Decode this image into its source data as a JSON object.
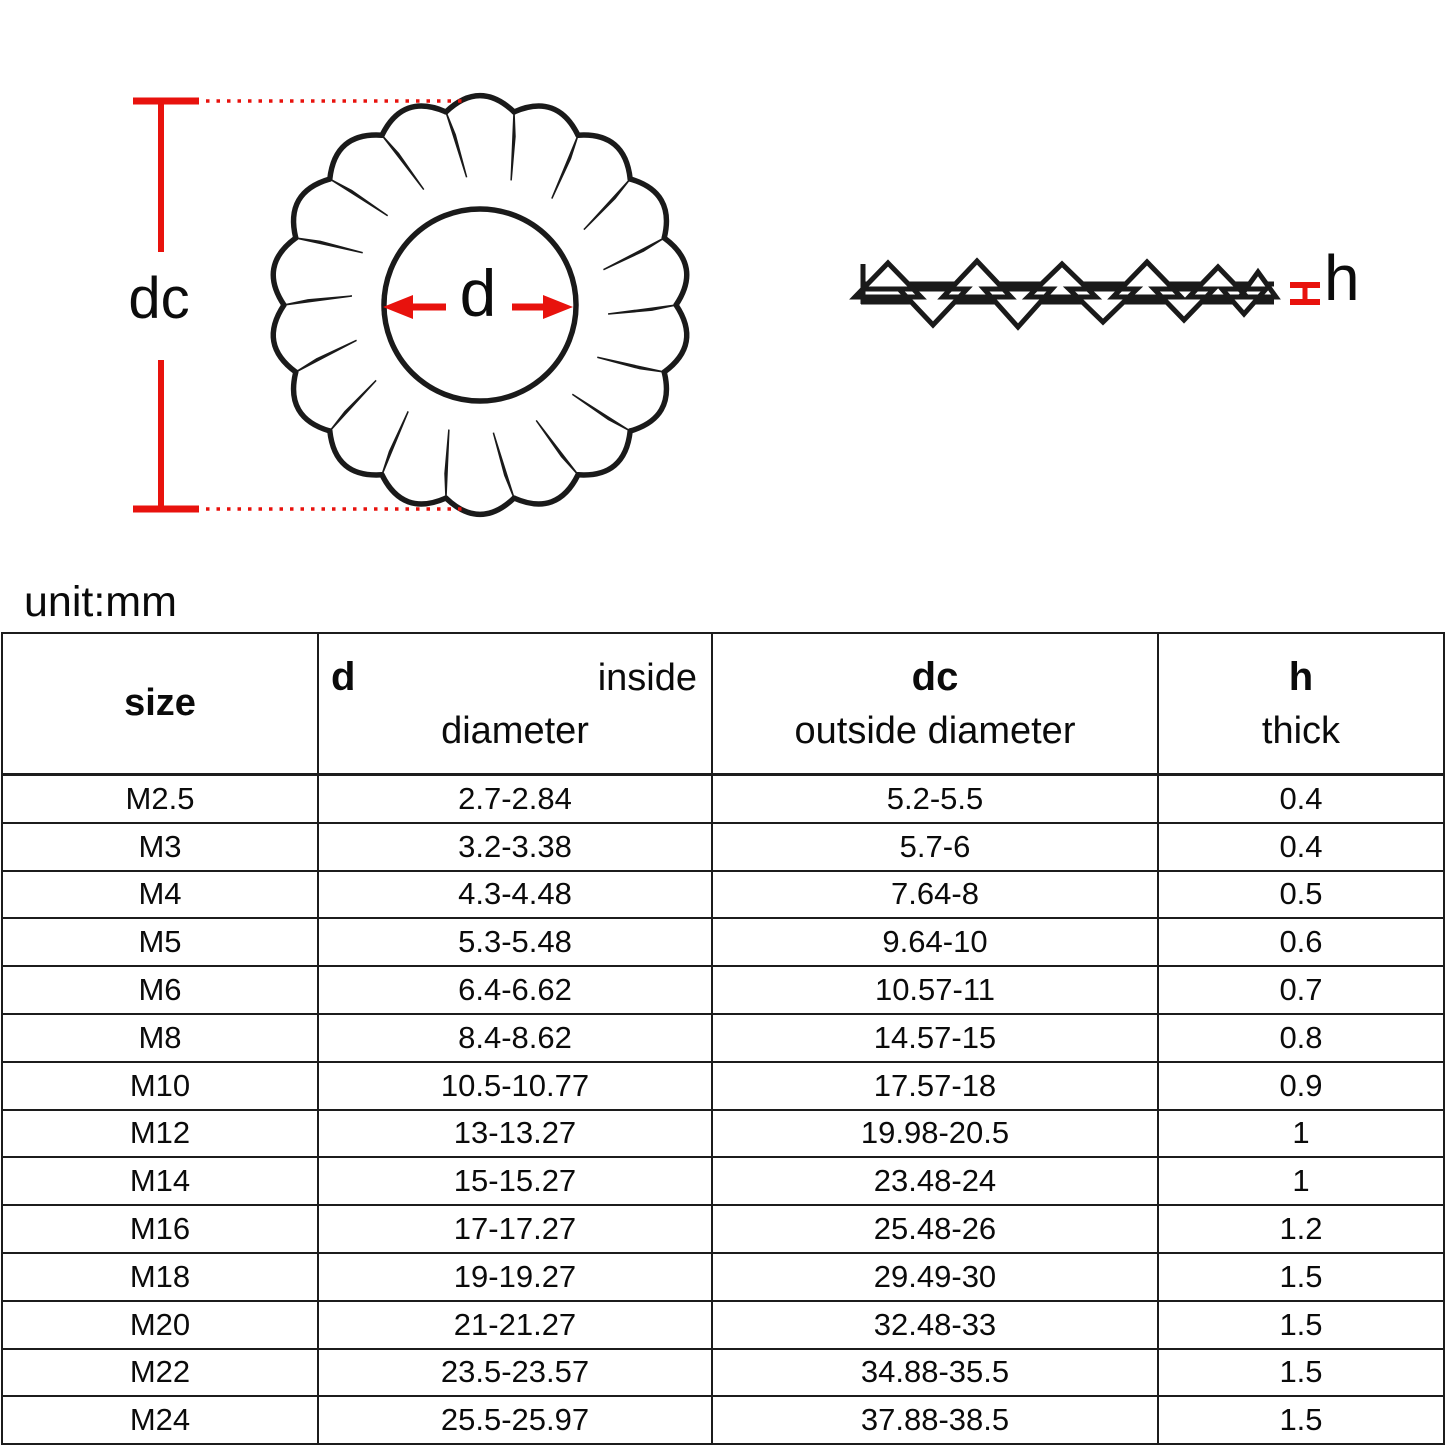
{
  "unit_note": "unit:mm",
  "diagram": {
    "front_view": {
      "outer_diameter_label": "dc",
      "inner_diameter_label": "d"
    },
    "side_view": {
      "thickness_label": "h"
    },
    "colors": {
      "dimension_red": "#e8120d",
      "line_black": "#1a1a1a"
    }
  },
  "table": {
    "header": {
      "size_label": "size",
      "d_symbol": "d",
      "d_desc_word1": "inside",
      "d_desc_word2": "diameter",
      "dc_symbol": "dc",
      "dc_desc": "outside diameter",
      "h_symbol": "h",
      "h_desc": "thick"
    },
    "rows": [
      {
        "size": "M2.5",
        "d": "2.7-2.84",
        "dc": "5.2-5.5",
        "h": "0.4"
      },
      {
        "size": "M3",
        "d": "3.2-3.38",
        "dc": "5.7-6",
        "h": "0.4"
      },
      {
        "size": "M4",
        "d": "4.3-4.48",
        "dc": "7.64-8",
        "h": "0.5"
      },
      {
        "size": "M5",
        "d": "5.3-5.48",
        "dc": "9.64-10",
        "h": "0.6"
      },
      {
        "size": "M6",
        "d": "6.4-6.62",
        "dc": "10.57-11",
        "h": "0.7"
      },
      {
        "size": "M8",
        "d": "8.4-8.62",
        "dc": "14.57-15",
        "h": "0.8"
      },
      {
        "size": "M10",
        "d": "10.5-10.77",
        "dc": "17.57-18",
        "h": "0.9"
      },
      {
        "size": "M12",
        "d": "13-13.27",
        "dc": "19.98-20.5",
        "h": "1"
      },
      {
        "size": "M14",
        "d": "15-15.27",
        "dc": "23.48-24",
        "h": "1"
      },
      {
        "size": "M16",
        "d": "17-17.27",
        "dc": "25.48-26",
        "h": "1.2"
      },
      {
        "size": "M18",
        "d": "19-19.27",
        "dc": "29.49-30",
        "h": "1.5"
      },
      {
        "size": "M20",
        "d": "21-21.27",
        "dc": "32.48-33",
        "h": "1.5"
      },
      {
        "size": "M22",
        "d": "23.5-23.57",
        "dc": "34.88-35.5",
        "h": "1.5"
      },
      {
        "size": "M24",
        "d": "25.5-25.97",
        "dc": "37.88-38.5",
        "h": "1.5"
      }
    ]
  }
}
